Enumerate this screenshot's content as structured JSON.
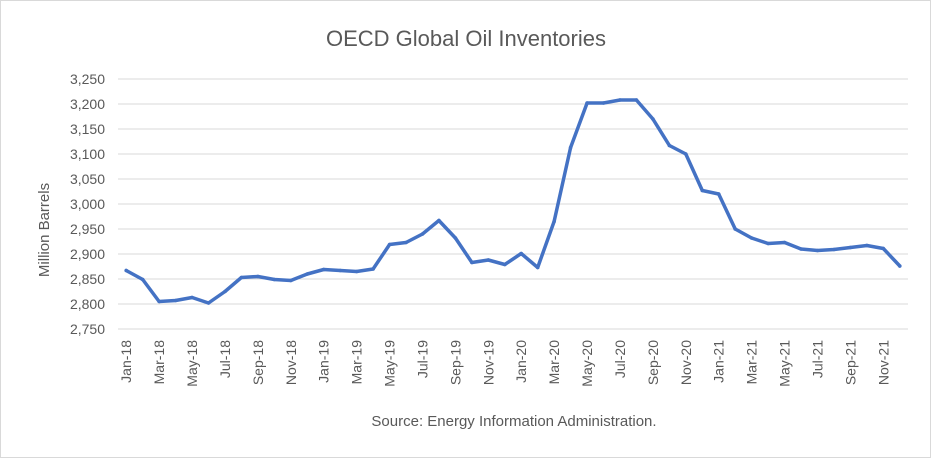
{
  "chart_data": {
    "type": "line",
    "title": "OECD Global Oil Inventories",
    "xlabel": "",
    "ylabel": "Million Barrels",
    "source": "Source: Energy Information Administration.",
    "ylim": [
      2750,
      3250
    ],
    "yticks": [
      "2,750",
      "2,800",
      "2,850",
      "2,900",
      "2,950",
      "3,000",
      "3,050",
      "3,100",
      "3,150",
      "3,200",
      "3,250"
    ],
    "x": [
      "Jan-18",
      "Feb-18",
      "Mar-18",
      "Apr-18",
      "May-18",
      "Jun-18",
      "Jul-18",
      "Aug-18",
      "Sep-18",
      "Oct-18",
      "Nov-18",
      "Dec-18",
      "Jan-19",
      "Feb-19",
      "Mar-19",
      "Apr-19",
      "May-19",
      "Jun-19",
      "Jul-19",
      "Aug-19",
      "Sep-19",
      "Oct-19",
      "Nov-19",
      "Dec-19",
      "Jan-20",
      "Feb-20",
      "Mar-20",
      "Apr-20",
      "May-20",
      "Jun-20",
      "Jul-20",
      "Aug-20",
      "Sep-20",
      "Oct-20",
      "Nov-20",
      "Dec-20",
      "Jan-21",
      "Feb-21",
      "Mar-21",
      "Apr-21",
      "May-21",
      "Jun-21",
      "Jul-21",
      "Aug-21",
      "Sep-21",
      "Oct-21",
      "Nov-21",
      "Dec-21"
    ],
    "xtick_labels": [
      "Jan-18",
      "Mar-18",
      "May-18",
      "Jul-18",
      "Sep-18",
      "Nov-18",
      "Jan-19",
      "Mar-19",
      "May-19",
      "Jul-19",
      "Sep-19",
      "Nov-19",
      "Jan-20",
      "Mar-20",
      "May-20",
      "Jul-20",
      "Sep-20",
      "Nov-20",
      "Jan-21",
      "Mar-21",
      "May-21",
      "Jul-21",
      "Sep-21",
      "Nov-21"
    ],
    "series": [
      {
        "values": [
          2867,
          2849,
          2805,
          2807,
          2813,
          2802,
          2825,
          2853,
          2855,
          2849,
          2847,
          2860,
          2869,
          2867,
          2865,
          2870,
          2919,
          2923,
          2940,
          2967,
          2932,
          2883,
          2888,
          2879,
          2901,
          2873,
          2965,
          3113,
          3202,
          3202,
          3208,
          3208,
          3170,
          3117,
          3100,
          3027,
          3020,
          2950,
          2932,
          2921,
          2923,
          2910,
          2907,
          2909,
          2913,
          2917,
          2911,
          2876
        ],
        "color": "#4472c4"
      }
    ],
    "grid": true,
    "gridline_color": "#d9d9d9",
    "legend": "none"
  }
}
